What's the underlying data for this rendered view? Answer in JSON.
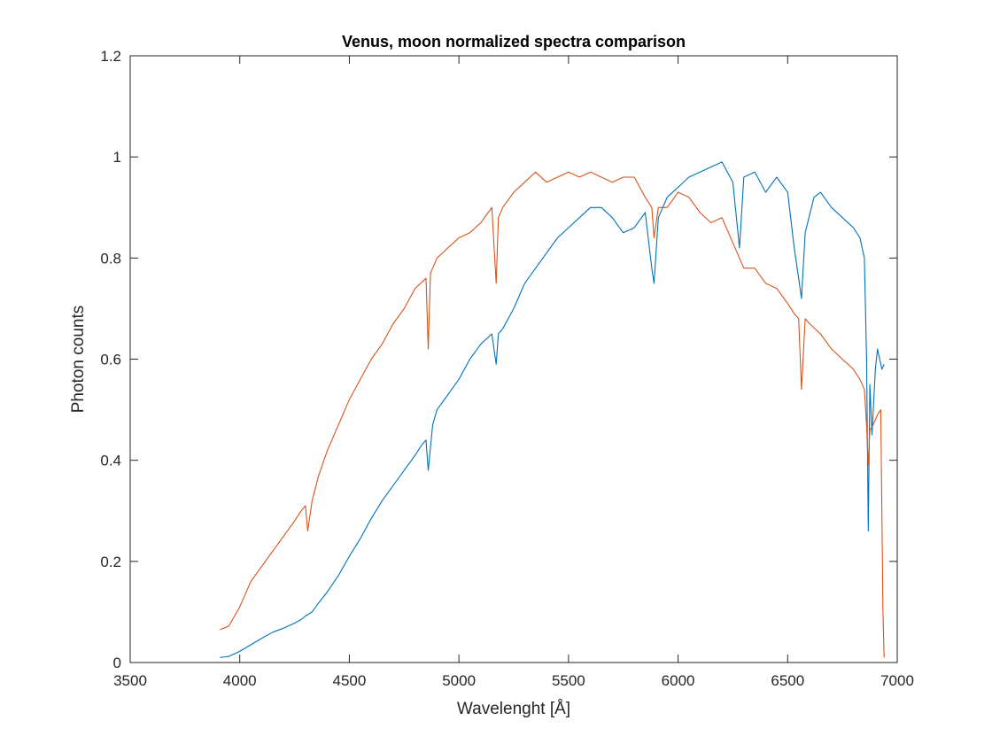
{
  "chart_data": {
    "type": "line",
    "title": "Venus, moon normalized spectra comparison",
    "xlabel": "Wavelenght [Å]",
    "ylabel": "Photon counts",
    "xlim": [
      3500,
      7000
    ],
    "ylim": [
      0,
      1.2
    ],
    "xticks": [
      "3500",
      "4000",
      "4500",
      "5000",
      "5500",
      "6000",
      "6500",
      "7000"
    ],
    "yticks": [
      "0",
      "0.2",
      "0.4",
      "0.6",
      "0.8",
      "1",
      "1.2"
    ],
    "grid": false,
    "legend": "none",
    "series": [
      {
        "color": "#0072BD",
        "x": [
          3910,
          3950,
          4000,
          4050,
          4100,
          4150,
          4200,
          4250,
          4280,
          4300,
          4330,
          4360,
          4400,
          4450,
          4500,
          4550,
          4600,
          4650,
          4700,
          4750,
          4800,
          4830,
          4850,
          4860,
          4880,
          4900,
          4950,
          5000,
          5050,
          5100,
          5150,
          5170,
          5180,
          5200,
          5250,
          5300,
          5350,
          5400,
          5450,
          5500,
          5550,
          5600,
          5650,
          5700,
          5750,
          5800,
          5850,
          5880,
          5890,
          5910,
          5950,
          6000,
          6050,
          6100,
          6150,
          6200,
          6250,
          6280,
          6300,
          6350,
          6400,
          6450,
          6500,
          6530,
          6550,
          6563,
          6580,
          6620,
          6650,
          6700,
          6750,
          6800,
          6830,
          6850,
          6860,
          6868,
          6875,
          6885,
          6900,
          6910,
          6920,
          6930,
          6940
        ],
        "y": [
          0.01,
          0.012,
          0.022,
          0.035,
          0.048,
          0.06,
          0.068,
          0.078,
          0.085,
          0.092,
          0.1,
          0.118,
          0.14,
          0.172,
          0.21,
          0.245,
          0.285,
          0.32,
          0.35,
          0.38,
          0.41,
          0.43,
          0.44,
          0.38,
          0.47,
          0.5,
          0.53,
          0.56,
          0.6,
          0.63,
          0.65,
          0.59,
          0.65,
          0.66,
          0.7,
          0.75,
          0.78,
          0.81,
          0.84,
          0.86,
          0.88,
          0.9,
          0.9,
          0.88,
          0.85,
          0.86,
          0.89,
          0.78,
          0.75,
          0.88,
          0.92,
          0.94,
          0.96,
          0.97,
          0.98,
          0.99,
          0.95,
          0.82,
          0.96,
          0.97,
          0.93,
          0.96,
          0.93,
          0.82,
          0.76,
          0.72,
          0.85,
          0.92,
          0.93,
          0.9,
          0.88,
          0.86,
          0.84,
          0.8,
          0.6,
          0.26,
          0.55,
          0.45,
          0.58,
          0.62,
          0.6,
          0.58,
          0.59
        ]
      },
      {
        "color": "#D95319",
        "x": [
          3910,
          3950,
          4000,
          4050,
          4100,
          4150,
          4200,
          4250,
          4280,
          4300,
          4310,
          4330,
          4360,
          4400,
          4450,
          4500,
          4550,
          4600,
          4650,
          4700,
          4750,
          4800,
          4850,
          4860,
          4870,
          4880,
          4900,
          4950,
          5000,
          5050,
          5100,
          5150,
          5170,
          5180,
          5200,
          5250,
          5300,
          5350,
          5400,
          5450,
          5500,
          5550,
          5600,
          5650,
          5700,
          5750,
          5800,
          5850,
          5880,
          5890,
          5910,
          5950,
          6000,
          6050,
          6100,
          6150,
          6200,
          6250,
          6300,
          6350,
          6400,
          6450,
          6500,
          6530,
          6550,
          6563,
          6580,
          6600,
          6650,
          6700,
          6750,
          6800,
          6830,
          6850,
          6860,
          6868,
          6875,
          6890,
          6910,
          6925,
          6935,
          6940
        ],
        "y": [
          0.065,
          0.072,
          0.11,
          0.16,
          0.19,
          0.22,
          0.25,
          0.28,
          0.3,
          0.31,
          0.26,
          0.32,
          0.37,
          0.42,
          0.47,
          0.52,
          0.56,
          0.6,
          0.63,
          0.67,
          0.7,
          0.74,
          0.76,
          0.62,
          0.77,
          0.78,
          0.8,
          0.82,
          0.84,
          0.85,
          0.87,
          0.9,
          0.75,
          0.88,
          0.9,
          0.93,
          0.95,
          0.97,
          0.95,
          0.96,
          0.97,
          0.96,
          0.97,
          0.96,
          0.95,
          0.96,
          0.96,
          0.92,
          0.9,
          0.84,
          0.9,
          0.9,
          0.93,
          0.92,
          0.89,
          0.87,
          0.88,
          0.83,
          0.78,
          0.78,
          0.75,
          0.74,
          0.71,
          0.69,
          0.68,
          0.54,
          0.68,
          0.67,
          0.65,
          0.62,
          0.6,
          0.58,
          0.56,
          0.54,
          0.47,
          0.39,
          0.46,
          0.47,
          0.49,
          0.5,
          0.1,
          0.01
        ]
      }
    ]
  }
}
